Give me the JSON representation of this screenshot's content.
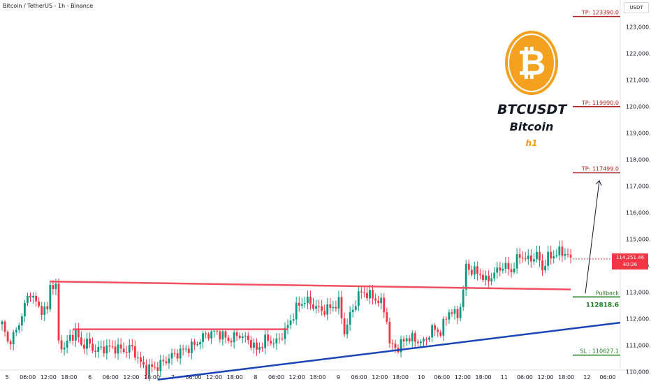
{
  "header": {
    "symbol_title": "Bitcoin / TetherUS - 1h - Binance",
    "currency": "USDT"
  },
  "branding": {
    "logo_icon": "bitcoin-logo",
    "logo_letter": "₿",
    "ticker": "BTCUSDT",
    "name": "Bitcoin",
    "timeframe": "h1",
    "accent_color": "#f4a11f",
    "timeframe_color": "#f39c12"
  },
  "last_price": {
    "price": "114,251.46",
    "countdown": "40:26",
    "color": "#f23645"
  },
  "chart_data": {
    "type": "candlestick",
    "title": "Bitcoin / TetherUS - 1h - Binance",
    "y_range": [
      109800,
      123800
    ],
    "y_ticks": [
      "110,000.00",
      "111,000.00",
      "112,000.00",
      "113,000.00",
      "114,000.00",
      "115,000.00",
      "116,000.00",
      "117,000.00",
      "118,000.00",
      "119,000.00",
      "120,000.00",
      "121,000.00",
      "122,000.00",
      "123,000.00"
    ],
    "x_ticks": [
      "5",
      "06:00",
      "12:00",
      "18:00",
      "6",
      "06:00",
      "12:00",
      "18:00",
      "7",
      "06:00",
      "12:00",
      "18:00",
      "8",
      "06:00",
      "12:00",
      "18:00",
      "9",
      "06:00",
      "12:00",
      "18:00",
      "10",
      "06:00",
      "12:00",
      "18:00",
      "11",
      "06:00",
      "12:00",
      "18:00",
      "12",
      "06:00"
    ],
    "candle_colors": {
      "up": "#089981",
      "down": "#f23645"
    },
    "anchors": [
      [
        0,
        111800
      ],
      [
        2,
        111100
      ],
      [
        5,
        111500
      ],
      [
        8,
        112500
      ],
      [
        10,
        113000
      ],
      [
        13,
        112400
      ],
      [
        16,
        112300
      ],
      [
        17,
        113300
      ],
      [
        19,
        113200
      ],
      [
        20,
        111100
      ],
      [
        22,
        110900
      ],
      [
        24,
        111300
      ],
      [
        26,
        111500
      ],
      [
        28,
        111000
      ],
      [
        30,
        111100
      ],
      [
        33,
        110800
      ],
      [
        36,
        110900
      ],
      [
        40,
        110900
      ],
      [
        43,
        110800
      ],
      [
        46,
        110900
      ],
      [
        49,
        110300
      ],
      [
        51,
        110100
      ],
      [
        55,
        110200
      ],
      [
        60,
        110600
      ],
      [
        64,
        110800
      ],
      [
        68,
        111000
      ],
      [
        72,
        111400
      ],
      [
        76,
        111500
      ],
      [
        80,
        111200
      ],
      [
        84,
        111400
      ],
      [
        88,
        111100
      ],
      [
        90,
        110800
      ],
      [
        93,
        111200
      ],
      [
        97,
        111100
      ],
      [
        101,
        111700
      ],
      [
        104,
        112400
      ],
      [
        107,
        112700
      ],
      [
        110,
        112500
      ],
      [
        113,
        112300
      ],
      [
        116,
        112400
      ],
      [
        119,
        112600
      ],
      [
        121,
        111500
      ],
      [
        123,
        112100
      ],
      [
        126,
        112900
      ],
      [
        128,
        113000
      ],
      [
        131,
        112800
      ],
      [
        134,
        112600
      ],
      [
        136,
        112000
      ],
      [
        137,
        111000
      ],
      [
        140,
        110900
      ],
      [
        143,
        111300
      ],
      [
        146,
        111200
      ],
      [
        149,
        111100
      ],
      [
        152,
        111600
      ],
      [
        155,
        111500
      ],
      [
        158,
        112300
      ],
      [
        161,
        112100
      ],
      [
        163,
        113000
      ],
      [
        164,
        114000
      ],
      [
        166,
        113800
      ],
      [
        169,
        113700
      ],
      [
        171,
        113400
      ],
      [
        174,
        113700
      ],
      [
        177,
        114000
      ],
      [
        180,
        113800
      ],
      [
        183,
        114400
      ],
      [
        186,
        114200
      ],
      [
        189,
        114400
      ],
      [
        191,
        113900
      ],
      [
        193,
        114300
      ],
      [
        195,
        114400
      ],
      [
        197,
        114500
      ],
      [
        199,
        114500
      ],
      [
        201,
        114200
      ]
    ],
    "levels": [
      {
        "label": "TP: 123390.0",
        "value": 123390,
        "color": "#b22222"
      },
      {
        "label": "TP: 119990.0",
        "value": 119990,
        "color": "#b22222"
      },
      {
        "label": "TP: 117499.0",
        "value": 117499,
        "color": "#b22222"
      },
      {
        "label": "Pullback",
        "value": 112818.6,
        "color": "#1e7d1e",
        "value_label": "112818.6"
      },
      {
        "label": "SL : 110627.1",
        "value": 110627.1,
        "color": "#1e7d1e"
      }
    ],
    "resistance_line": {
      "start": [
        17,
        113400
      ],
      "end": [
        201,
        113100
      ],
      "color": "#f25060"
    },
    "mid_resistance": {
      "start": [
        25,
        111600
      ],
      "end": [
        101,
        111600
      ],
      "color": "#f25060"
    },
    "support_line": {
      "start": [
        55,
        109700
      ],
      "end": [
        230,
        112000
      ],
      "color": "#1a44b8"
    },
    "projection_arrow": {
      "start": [
        206,
        112950
      ],
      "end": [
        212,
        117200
      ]
    },
    "grid": false
  }
}
